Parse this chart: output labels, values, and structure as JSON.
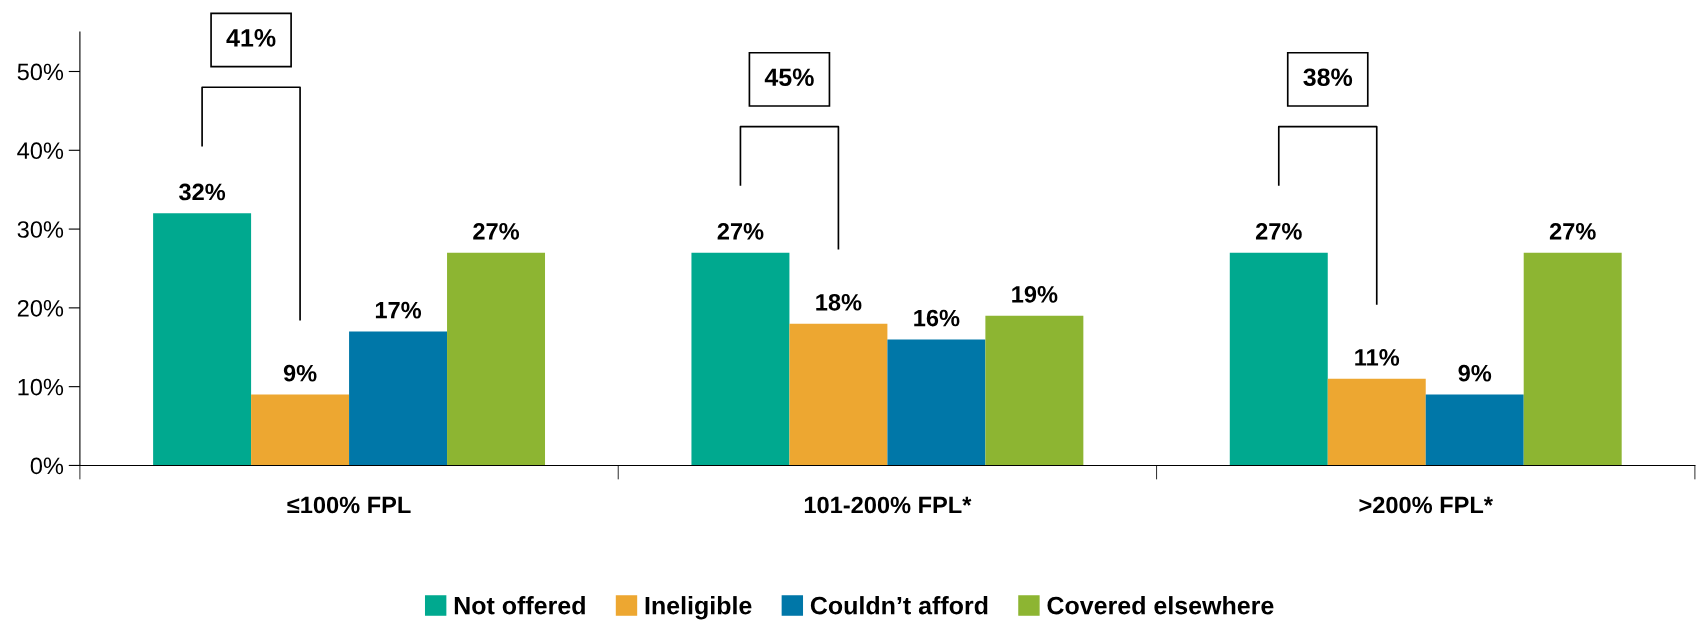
{
  "chart_data": {
    "type": "bar",
    "categories": [
      "≤100% FPL",
      "101-200% FPL*",
      ">200% FPL*"
    ],
    "series": [
      {
        "name": "Not offered",
        "color": "#00a98f",
        "values": [
          32,
          27,
          27
        ],
        "value_labels": [
          "32%",
          "27%",
          "27%"
        ]
      },
      {
        "name": "Ineligible",
        "color": "#eda731",
        "values": [
          9,
          18,
          11
        ],
        "value_labels": [
          "9%",
          "18%",
          "11%"
        ]
      },
      {
        "name": "Couldn’t afford",
        "color": "#0077a8",
        "values": [
          17,
          16,
          9
        ],
        "value_labels": [
          "17%",
          "16%",
          "9%"
        ]
      },
      {
        "name": "Covered elsewhere",
        "color": "#8db532",
        "values": [
          27,
          19,
          27
        ],
        "value_labels": [
          "27%",
          "19%",
          "27%"
        ]
      }
    ],
    "annotations": [
      "41%",
      "45%",
      "38%"
    ],
    "ylim": [
      0,
      55
    ],
    "yticks": [
      {
        "value": 0,
        "label": "0%"
      },
      {
        "value": 10,
        "label": "10%"
      },
      {
        "value": 20,
        "label": "20%"
      },
      {
        "value": 30,
        "label": "30%"
      },
      {
        "value": 40,
        "label": "40%"
      },
      {
        "value": 50,
        "label": "50%"
      }
    ],
    "grid": false,
    "legend": "bottom"
  }
}
